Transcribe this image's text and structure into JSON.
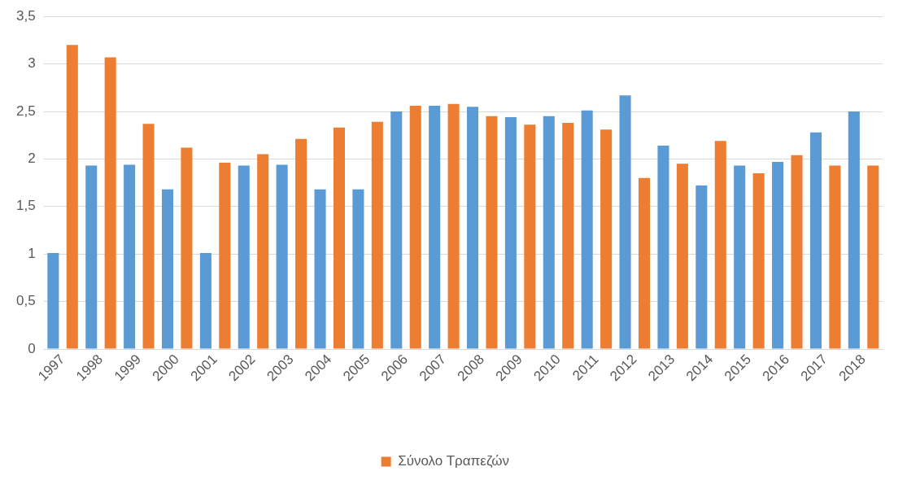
{
  "chart_data": {
    "type": "bar",
    "categories": [
      "1997",
      "1998",
      "1999",
      "2000",
      "2001",
      "2002",
      "2003",
      "2004",
      "2005",
      "2006",
      "2007",
      "2008",
      "2009",
      "2010",
      "2011",
      "2012",
      "2013",
      "2014",
      "2015",
      "2016",
      "2017",
      "2018"
    ],
    "series": [
      {
        "color": "#5b9bd5",
        "values": [
          1.01,
          1.93,
          1.94,
          1.68,
          1.01,
          1.93,
          1.94,
          1.68,
          1.68,
          2.5,
          2.56,
          2.55,
          2.44,
          2.45,
          2.51,
          2.67,
          2.14,
          1.72,
          1.93,
          1.97,
          2.28,
          2.5
        ]
      },
      {
        "name": "Σύνολο Τραπεζών",
        "color": "#ed7d31",
        "values": [
          3.2,
          3.07,
          2.37,
          2.12,
          1.96,
          2.05,
          2.21,
          2.33,
          2.39,
          2.56,
          2.58,
          2.45,
          2.36,
          2.38,
          2.31,
          1.8,
          1.95,
          2.19,
          1.85,
          2.04,
          1.93,
          1.93
        ]
      }
    ],
    "ylim": [
      0,
      3.5
    ],
    "yticks": [
      0,
      {
        "value": 0.5,
        "label": "0,5"
      },
      1,
      {
        "value": 1.5,
        "label": "1,5"
      },
      2,
      {
        "value": 2.5,
        "label": "2,5"
      },
      3,
      {
        "value": 3.5,
        "label": "3,5"
      }
    ],
    "grid": "y",
    "legend": "bottom"
  }
}
